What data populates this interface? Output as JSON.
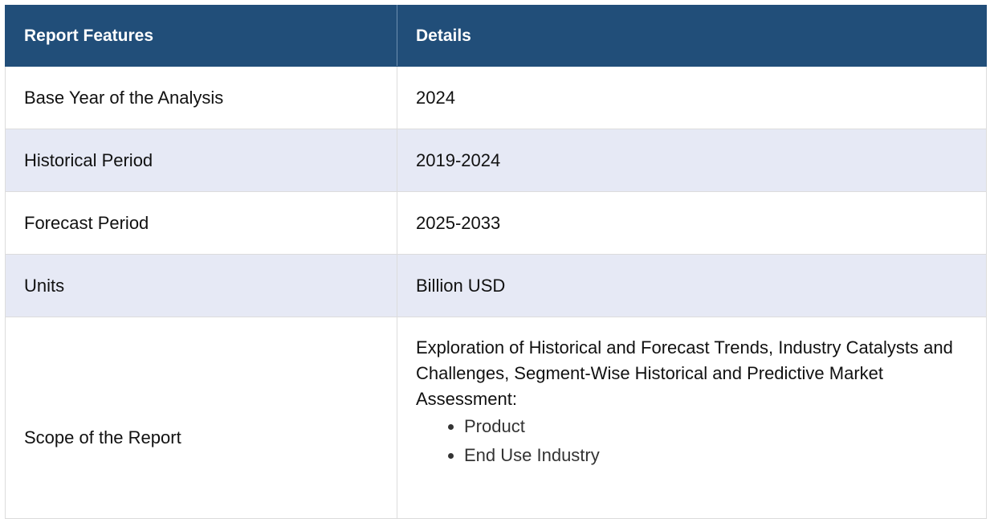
{
  "table": {
    "headers": [
      "Report Features",
      "Details"
    ],
    "rows": [
      {
        "feature": "Base Year of the Analysis",
        "detail": "2024"
      },
      {
        "feature": "Historical Period",
        "detail": "2019-2024"
      },
      {
        "feature": "Forecast Period",
        "detail": "2025-2033"
      },
      {
        "feature": "Units",
        "detail": "Billion USD"
      }
    ],
    "scope": {
      "feature": "Scope of the Report",
      "intro": "Exploration of Historical and Forecast Trends, Industry Catalysts and Challenges, Segment-Wise Historical and Predictive Market Assessment:",
      "items": [
        "Product",
        "End Use Industry"
      ]
    }
  },
  "colors": {
    "header_bg": "#214e79",
    "header_text": "#ffffff",
    "alt_row_bg": "#e6e9f5"
  }
}
